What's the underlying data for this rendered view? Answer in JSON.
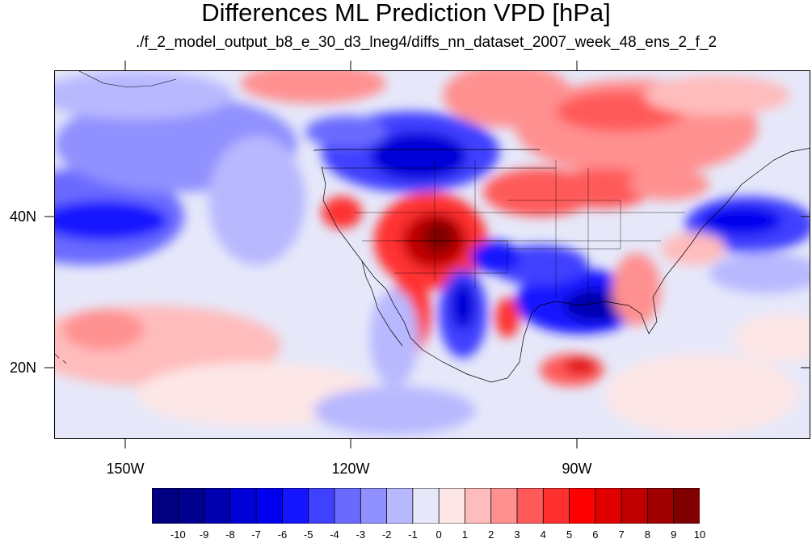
{
  "title": "Differences ML Prediction VPD [hPa]",
  "subtitle": "./f_2_model_output_b8_e_30_d3_lneg4/diffs_nn_dataset_2007_week_48_ens_2_f_2",
  "lat_labels": [
    "40N",
    "20N"
  ],
  "lon_labels": [
    "150W",
    "120W",
    "90W"
  ],
  "colorbar": {
    "labels": [
      "-10",
      "-9",
      "-8",
      "-7",
      "-6",
      "-5",
      "-4",
      "-3",
      "-2",
      "-1",
      "0",
      "1",
      "2",
      "3",
      "4",
      "5",
      "6",
      "7",
      "8",
      "9",
      "10"
    ],
    "colors": [
      "#000080",
      "#00008f",
      "#0000b0",
      "#0000d8",
      "#0000ef",
      "#1515ff",
      "#4040ff",
      "#6a6aff",
      "#9090ff",
      "#b8b8ff",
      "#e6e8fa",
      "#fde6e6",
      "#ffbcbc",
      "#ff9090",
      "#ff5a5a",
      "#ff3030",
      "#ff0000",
      "#e00000",
      "#c00000",
      "#a00000",
      "#800000"
    ]
  },
  "map_extent": {
    "lon": [
      -160,
      -60
    ],
    "lat": [
      10,
      59
    ]
  }
}
